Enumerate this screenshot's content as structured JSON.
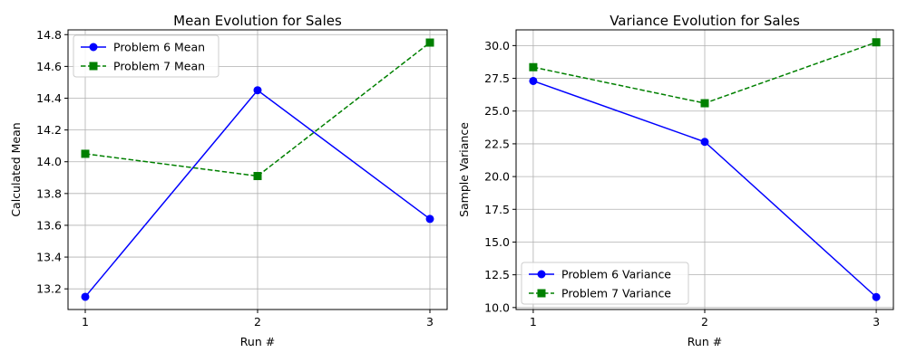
{
  "chart_data": [
    {
      "type": "line",
      "title": "Mean Evolution for Sales",
      "xlabel": "Run #",
      "ylabel": "Calculated Mean",
      "x": [
        1,
        2,
        3
      ],
      "xticks": [
        "1",
        "2",
        "3"
      ],
      "ylim": [
        13.07,
        14.83
      ],
      "yticks": [
        13.2,
        13.4,
        13.6,
        13.8,
        14.0,
        14.2,
        14.4,
        14.6,
        14.8
      ],
      "ytick_labels": [
        "13.2",
        "13.4",
        "13.6",
        "13.8",
        "14.0",
        "14.2",
        "14.4",
        "14.6",
        "14.8"
      ],
      "grid": true,
      "legend_position": "upper left",
      "series": [
        {
          "name": "Problem 6 Mean",
          "values": [
            13.15,
            14.45,
            13.64
          ],
          "color": "#0000ff",
          "marker": "circle",
          "linestyle": "solid"
        },
        {
          "name": "Problem 7 Mean",
          "values": [
            14.05,
            13.91,
            14.75
          ],
          "color": "#008000",
          "marker": "square",
          "linestyle": "dashed"
        }
      ]
    },
    {
      "type": "line",
      "title": "Variance Evolution for Sales",
      "xlabel": "Run #",
      "ylabel": "Sample Variance",
      "x": [
        1,
        2,
        3
      ],
      "xticks": [
        "1",
        "2",
        "3"
      ],
      "ylim": [
        9.85,
        31.2
      ],
      "yticks": [
        10.0,
        12.5,
        15.0,
        17.5,
        20.0,
        22.5,
        25.0,
        27.5,
        30.0
      ],
      "ytick_labels": [
        "10.0",
        "12.5",
        "15.0",
        "17.5",
        "20.0",
        "22.5",
        "25.0",
        "27.5",
        "30.0"
      ],
      "grid": true,
      "legend_position": "lower left",
      "series": [
        {
          "name": "Problem 6 Variance",
          "values": [
            27.3,
            22.65,
            10.8
          ],
          "color": "#0000ff",
          "marker": "circle",
          "linestyle": "solid"
        },
        {
          "name": "Problem 7 Variance",
          "values": [
            28.35,
            25.6,
            30.25
          ],
          "color": "#008000",
          "marker": "square",
          "linestyle": "dashed"
        }
      ]
    }
  ]
}
